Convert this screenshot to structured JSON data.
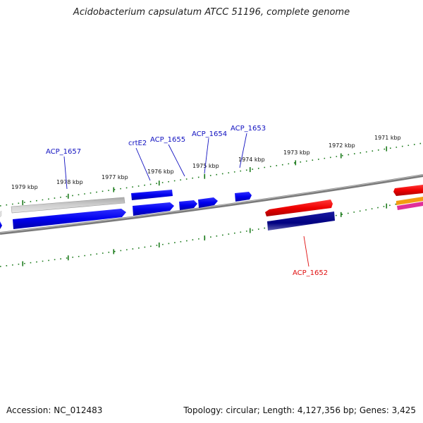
{
  "title": "Acidobacterium capsulatum ATCC 51196, complete genome",
  "footer": {
    "accession": "Accession: NC_012483",
    "summary": "Topology: circular; Length: 4,127,356 bp; Genes: 3,425"
  },
  "kbp_labels": [
    "1979 kbp",
    "1978 kbp",
    "1977 kbp",
    "1976 kbp",
    "1975 kbp",
    "1974 kbp",
    "1973 kbp",
    "1972 kbp",
    "1971 kbp"
  ],
  "gene_labels": [
    {
      "text": "ACP_1657",
      "color": "#1010c0"
    },
    {
      "text": "crtE2",
      "color": "#1010c0"
    },
    {
      "text": "ACP_1655",
      "color": "#1010c0"
    },
    {
      "text": "ACP_1654",
      "color": "#1010c0"
    },
    {
      "text": "ACP_1653",
      "color": "#1010c0"
    },
    {
      "text": "ACP_1652",
      "color": "#e01010"
    }
  ],
  "colors": {
    "tick": "#1a7a1a",
    "backbone": "#808080",
    "gene_blue": "#0000ee",
    "gene_grey": "#bdbdbd",
    "gene_red": "#ee0000",
    "gene_navy": "#000080",
    "gene_orange": "#f39c12",
    "gene_magenta": "#e0309a"
  }
}
